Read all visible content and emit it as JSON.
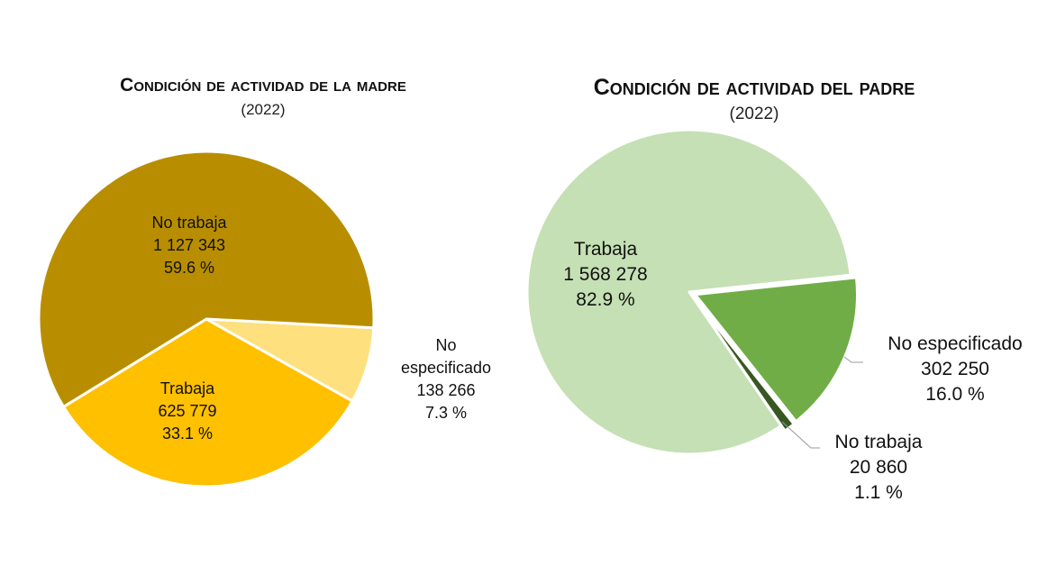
{
  "chart_data": [
    {
      "type": "pie",
      "title": "Condición de actividad de la madre",
      "subtitle": "(2022)",
      "slices": [
        {
          "label": "No especificado",
          "label_lines": [
            "No",
            "especificado"
          ],
          "value": 138266,
          "value_text": "138 266",
          "percent": 7.3,
          "percent_text": "7.3 %",
          "color": "#FFE07F"
        },
        {
          "label": "Trabaja",
          "label_lines": [
            "Trabaja"
          ],
          "value": 625779,
          "value_text": "625 779",
          "percent": 33.1,
          "percent_text": "33.1 %",
          "color": "#FFC000"
        },
        {
          "label": "No trabaja",
          "label_lines": [
            "No trabaja"
          ],
          "value": 1127343,
          "value_text": "1 127 343",
          "percent": 59.6,
          "percent_text": "59.6 %",
          "color": "#B88E00"
        }
      ]
    },
    {
      "type": "pie",
      "title": "Condición de actividad del padre",
      "subtitle": "(2022)",
      "slices": [
        {
          "label": "No especificado",
          "label_lines": [
            "No especificado"
          ],
          "value": 302250,
          "value_text": "302 250",
          "percent": 16.0,
          "percent_text": "16.0 %",
          "color": "#70AD47",
          "exploded": true
        },
        {
          "label": "No trabaja",
          "label_lines": [
            "No trabaja"
          ],
          "value": 20860,
          "value_text": "20 860",
          "percent": 1.1,
          "percent_text": "1.1 %",
          "color": "#385723",
          "exploded": true
        },
        {
          "label": "Trabaja",
          "label_lines": [
            "Trabaja"
          ],
          "value": 1568278,
          "value_text": "1 568 278",
          "percent": 82.9,
          "percent_text": "82.9 %",
          "color": "#C5E0B4"
        }
      ]
    }
  ]
}
